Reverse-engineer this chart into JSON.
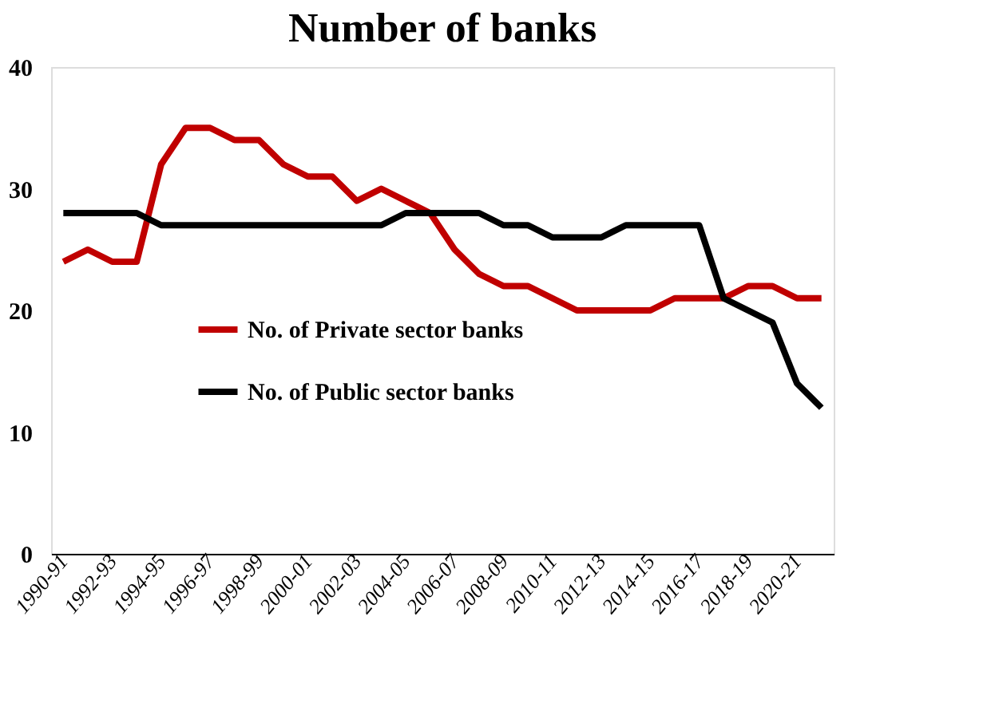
{
  "chart_data": {
    "type": "line",
    "title": "Number of banks",
    "categories": [
      "1990-91",
      null,
      "1992-93",
      null,
      "1994-95",
      null,
      "1996-97",
      null,
      "1998-99",
      null,
      "2000-01",
      null,
      "2002-03",
      null,
      "2004-05",
      null,
      "2006-07",
      null,
      "2008-09",
      null,
      "2010-11",
      null,
      "2012-13",
      null,
      "2014-15",
      null,
      "2016-17",
      null,
      "2018-19",
      null,
      "2020-21",
      null
    ],
    "series": [
      {
        "name": "No. of Private sector banks",
        "color": "#c00000",
        "values": [
          24,
          25,
          24,
          24,
          32,
          35,
          35,
          34,
          34,
          32,
          31,
          31,
          29,
          30,
          29,
          28,
          25,
          23,
          22,
          22,
          21,
          20,
          20,
          20,
          20,
          21,
          21,
          21,
          22,
          22,
          21,
          21
        ]
      },
      {
        "name": "No. of Public sector banks",
        "color": "#000000",
        "values": [
          28,
          28,
          28,
          28,
          27,
          27,
          27,
          27,
          27,
          27,
          27,
          27,
          27,
          27,
          28,
          28,
          28,
          28,
          27,
          27,
          26,
          26,
          26,
          27,
          27,
          27,
          27,
          21,
          20,
          19,
          14,
          12
        ]
      }
    ],
    "ylim": [
      0,
      40
    ],
    "yticks": [
      0,
      10,
      20,
      30,
      40
    ],
    "grid": false,
    "legend": "left",
    "marker": "none",
    "line_style": "solid"
  }
}
